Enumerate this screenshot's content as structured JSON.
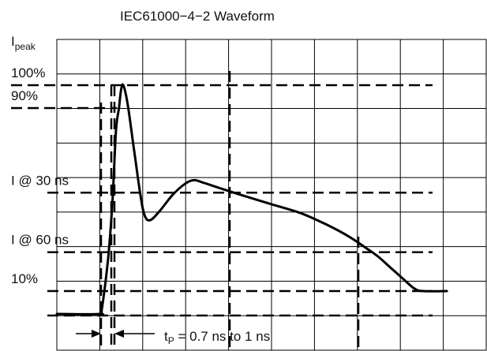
{
  "chart_data": {
    "type": "line",
    "title": "IEC61000−4−2 Waveform",
    "ylabel": {
      "main": "I",
      "sub": "peak"
    },
    "grid": true,
    "xlim": [
      0,
      10
    ],
    "ylim": [
      0,
      1.2
    ],
    "level_labels": [
      {
        "text": "100%",
        "y": 1.0
      },
      {
        "text": "90%",
        "y": 0.9
      },
      {
        "text": "I @ 30 ns",
        "y": 0.53
      },
      {
        "text": "I @ 60 ns",
        "y": 0.27
      },
      {
        "text": "10%",
        "y": 0.1
      }
    ],
    "series": [
      {
        "values": [
          [
            0,
            0
          ],
          [
            1.0,
            0
          ],
          [
            1.05,
            0.02
          ],
          [
            1.2,
            0.25
          ],
          [
            1.3,
            0.5
          ],
          [
            1.38,
            0.8
          ],
          [
            1.45,
            0.9
          ],
          [
            1.5,
            0.98
          ],
          [
            1.55,
            1.0
          ],
          [
            1.65,
            0.92
          ],
          [
            1.8,
            0.72
          ],
          [
            1.95,
            0.52
          ],
          [
            2.05,
            0.43
          ],
          [
            2.18,
            0.41
          ],
          [
            2.4,
            0.45
          ],
          [
            2.7,
            0.52
          ],
          [
            3.0,
            0.57
          ],
          [
            3.2,
            0.585
          ],
          [
            3.4,
            0.575
          ],
          [
            3.8,
            0.55
          ],
          [
            4.3,
            0.52
          ],
          [
            5.0,
            0.48
          ],
          [
            5.7,
            0.44
          ],
          [
            6.3,
            0.39
          ],
          [
            6.8,
            0.34
          ],
          [
            7.2,
            0.29
          ],
          [
            7.5,
            0.25
          ],
          [
            7.8,
            0.2
          ],
          [
            8.1,
            0.15
          ],
          [
            8.35,
            0.11
          ],
          [
            8.55,
            0.1
          ],
          [
            9.1,
            0.1
          ]
        ]
      }
    ],
    "annotation": {
      "main": "t",
      "sub": "P",
      "rest": " = 0.7 ns to 1 ns"
    }
  }
}
